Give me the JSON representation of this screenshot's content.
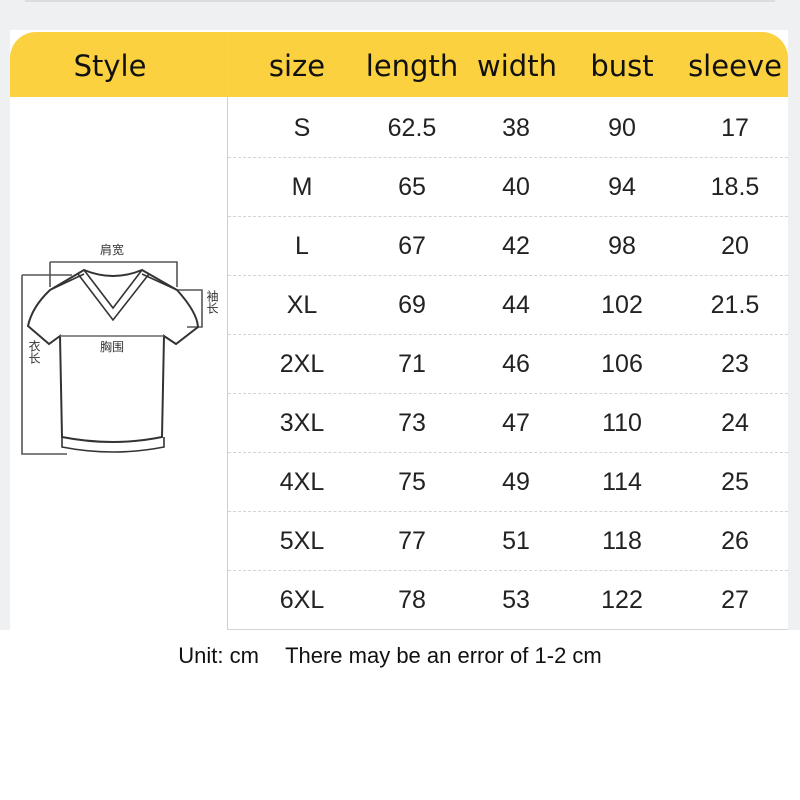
{
  "header": {
    "style": "Style",
    "columns": [
      "size",
      "length",
      "width",
      "bust",
      "sleeve"
    ]
  },
  "accent_color": "#fbd13f",
  "diagram_labels": {
    "shoulder": "肩宽",
    "sleeve": "袖长",
    "bust": "胸围",
    "length": "衣长"
  },
  "rows": [
    [
      "S",
      "62.5",
      "38",
      "90",
      "17"
    ],
    [
      "M",
      "65",
      "40",
      "94",
      "18.5"
    ],
    [
      "L",
      "67",
      "42",
      "98",
      "20"
    ],
    [
      "XL",
      "69",
      "44",
      "102",
      "21.5"
    ],
    [
      "2XL",
      "71",
      "46",
      "106",
      "23"
    ],
    [
      "3XL",
      "73",
      "47",
      "110",
      "24"
    ],
    [
      "4XL",
      "75",
      "49",
      "114",
      "25"
    ],
    [
      "5XL",
      "77",
      "51",
      "118",
      "26"
    ],
    [
      "6XL",
      "78",
      "53",
      "122",
      "27"
    ]
  ],
  "footer": {
    "unit": "Unit: cm",
    "note": "There may be an error of 1-2 cm"
  }
}
